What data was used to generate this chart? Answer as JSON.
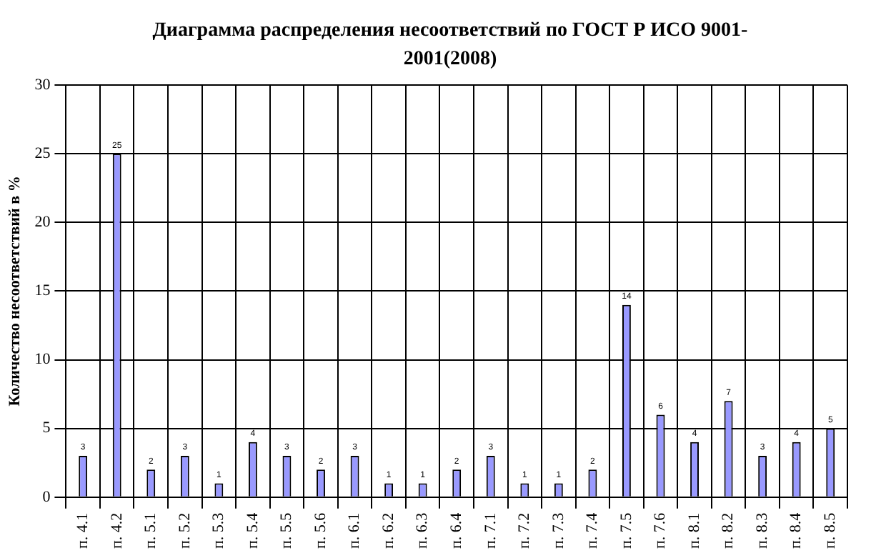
{
  "chart_data": {
    "type": "bar",
    "title": "Диаграмма распределения несоответствий по ГОСТ Р ИСО 9001-2001(2008)",
    "ylabel": "Количество несоответствий в %",
    "categories": [
      "п. 4.1",
      "п. 4.2",
      "п. 5.1",
      "п. 5.2",
      "п. 5.3",
      "п. 5.4",
      "п. 5.5",
      "п. 5.6",
      "п. 6.1",
      "п. 6.2",
      "п. 6.3",
      "п. 6.4",
      "п. 7.1",
      "п. 7.2",
      "п. 7.3",
      "п. 7.4",
      "п. 7.5",
      "п. 7.6",
      "п. 8.1",
      "п. 8.2",
      "п. 8.3",
      "п. 8.4",
      "п. 8.5"
    ],
    "values": [
      3,
      25,
      2,
      3,
      1,
      4,
      3,
      2,
      3,
      1,
      1,
      2,
      3,
      1,
      1,
      2,
      14,
      6,
      4,
      7,
      3,
      4,
      5
    ],
    "color": "#9999ff",
    "ylim": [
      0,
      30
    ],
    "yticks": [
      0,
      5,
      10,
      15,
      20,
      25,
      30
    ],
    "grid": true,
    "data_labels": true,
    "legend": false
  }
}
